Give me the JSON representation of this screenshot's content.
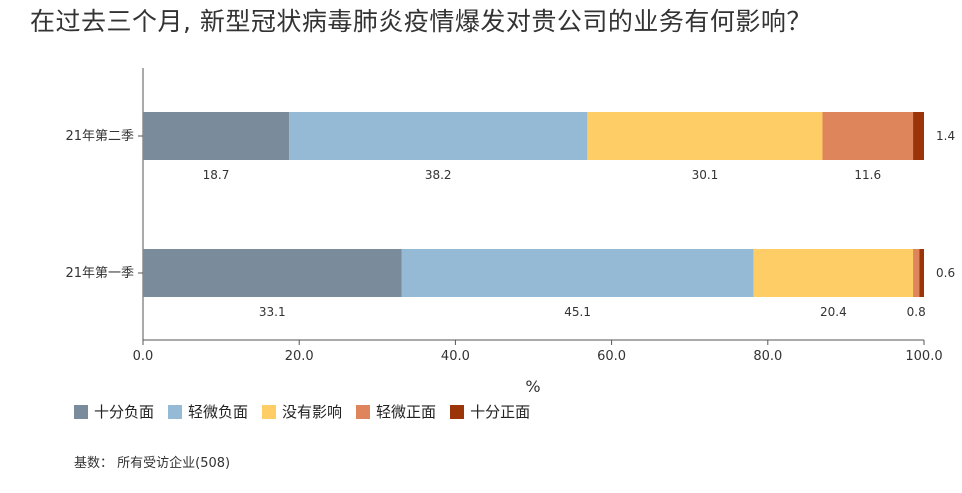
{
  "chart_data": {
    "type": "bar",
    "orientation": "horizontal",
    "stacked": true,
    "title": "在过去三个月, 新型冠状病毒肺炎疫情爆发对贵公司的业务有何影响？",
    "xlabel": "%",
    "xlim": [
      0,
      100
    ],
    "xticks": [
      "0.0",
      "20.0",
      "40.0",
      "60.0",
      "80.0",
      "100.0"
    ],
    "grid": false,
    "legend_position": "bottom-left",
    "categories": [
      "21年第二季",
      "21年第一季"
    ],
    "series": [
      {
        "name": "十分负面",
        "color": "#7a8b9c",
        "values": [
          18.7,
          33.1
        ]
      },
      {
        "name": "轻微负面",
        "color": "#94bad6",
        "values": [
          38.2,
          45.1
        ]
      },
      {
        "name": "没有影响",
        "color": "#ffcd66",
        "values": [
          30.1,
          20.4
        ]
      },
      {
        "name": "轻微正面",
        "color": "#de855b",
        "values": [
          11.6,
          0.8
        ]
      },
      {
        "name": "十分正面",
        "color": "#9b3408",
        "values": [
          1.4,
          0.6
        ]
      }
    ]
  },
  "footnote": "基数： 所有受访企业(508)"
}
